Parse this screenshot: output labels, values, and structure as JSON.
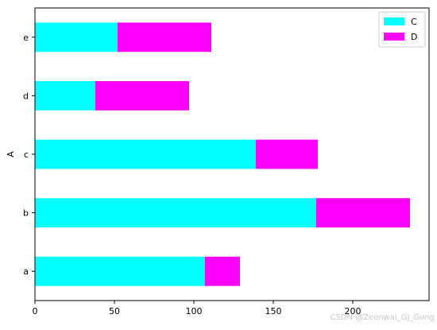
{
  "chart_data": {
    "type": "bar",
    "orientation": "horizontal",
    "stacked": true,
    "categories": [
      "a",
      "b",
      "c",
      "d",
      "e"
    ],
    "series": [
      {
        "name": "C",
        "values": [
          107,
          177,
          139,
          38,
          52
        ],
        "color": "#00ffff"
      },
      {
        "name": "D",
        "values": [
          22,
          59,
          39,
          59,
          59
        ],
        "color": "#ff00ff"
      }
    ],
    "title": "",
    "xlabel": "",
    "ylabel": "A",
    "xlim": [
      0,
      248
    ],
    "xticks": [
      0,
      50,
      100,
      150,
      200
    ],
    "grid": false,
    "legend_position": "top-right"
  },
  "watermark": "CSDN @Zeonwai_GJ_Gong"
}
